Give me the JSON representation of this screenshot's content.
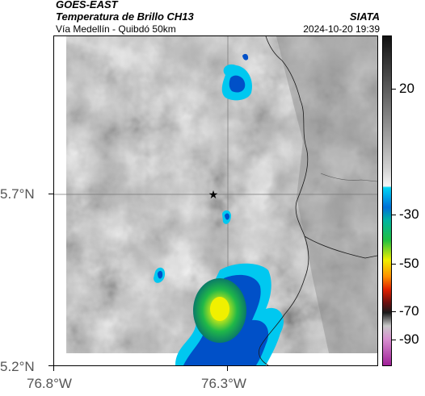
{
  "header": {
    "satellite": "GOES-EAST",
    "product": "Temperatura de Brillo CH13",
    "route": "Vía Medellín - Quibdó 50km",
    "agency": "SIATA",
    "datetime": "2024-10-20 19:39"
  },
  "map": {
    "lat_ticks": [
      "5.7°N",
      "5.2°N"
    ],
    "lon_ticks": [
      "76.8°W",
      "76.3°W"
    ],
    "marker": "star-icon"
  },
  "colorbar": {
    "labels": [
      "20",
      "-30",
      "-50",
      "-70",
      "-90"
    ],
    "colors": {
      "warm_gray_dark": "#3a3a3a",
      "warm_gray_light": "#f2f2f2",
      "cyan": "#00d5f5",
      "blue": "#0050c8",
      "green": "#20c040",
      "yellow": "#f0f000",
      "orange": "#ff7000",
      "red": "#d00000",
      "magenta": "#c040b0"
    }
  }
}
